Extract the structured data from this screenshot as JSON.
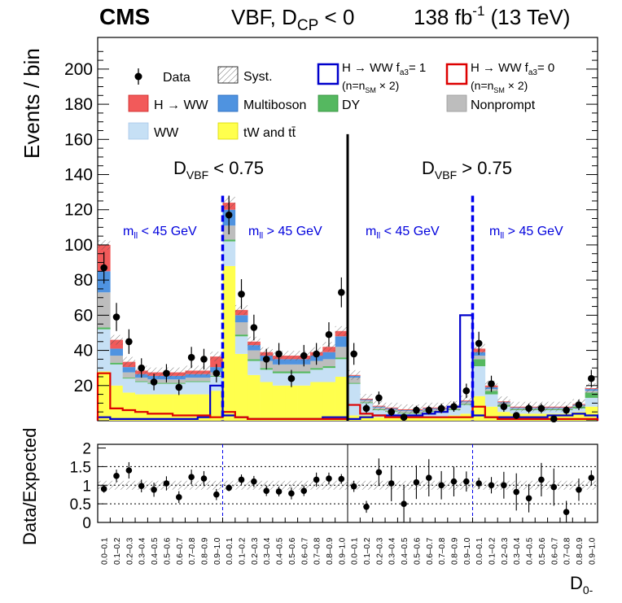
{
  "chart_data": {
    "type": "bar",
    "header": {
      "experiment": "CMS",
      "selection_main": "VBF, D",
      "selection_sub": "CP",
      "selection_tail": " < 0",
      "lumi_main": "138 fb",
      "lumi_sup": "-1",
      "lumi_tail": " (13 TeV)"
    },
    "ylabel": "Events / bin",
    "ratio_ylabel": "Data/Expected",
    "xlabel_main": "D",
    "xlabel_sub": "0-",
    "ylim": [
      0,
      218
    ],
    "ratio_ylim": [
      0,
      2.1
    ],
    "yticks": [
      "20",
      "40",
      "60",
      "80",
      "100",
      "120",
      "140",
      "160",
      "180",
      "200"
    ],
    "ratio_yticks": [
      "0",
      "0.5",
      "1",
      "1.5",
      "2"
    ],
    "categories": [
      "0.0–0.1",
      "0.1–0.2",
      "0.2–0.3",
      "0.3–0.4",
      "0.4–0.5",
      "0.5–0.6",
      "0.6–0.7",
      "0.7–0.8",
      "0.8–0.9",
      "0.9–1.0",
      "0.0–0.1",
      "0.1–0.2",
      "0.2–0.3",
      "0.3–0.4",
      "0.4–0.5",
      "0.5–0.6",
      "0.6–0.7",
      "0.7–0.8",
      "0.8–0.9",
      "0.9–1.0",
      "0.0–0.1",
      "0.1–0.2",
      "0.2–0.3",
      "0.3–0.4",
      "0.4–0.5",
      "0.5–0.6",
      "0.6–0.7",
      "0.7–0.8",
      "0.8–0.9",
      "0.9–1.0",
      "0.0–0.1",
      "0.1–0.2",
      "0.2–0.3",
      "0.3–0.4",
      "0.4–0.5",
      "0.5–0.6",
      "0.6–0.7",
      "0.7–0.8",
      "0.8–0.9",
      "0.9–1.0"
    ],
    "regions": {
      "dvbf_low": {
        "main": "D",
        "sub": "VBF",
        "tail": " < 0.75"
      },
      "dvbf_high": {
        "main": "D",
        "sub": "VBF",
        "tail": " > 0.75"
      },
      "mll": [
        {
          "main": "m",
          "sub": "ll",
          "tail": " < 45 GeV"
        },
        {
          "main": "m",
          "sub": "ll",
          "tail": " > 45 GeV"
        },
        {
          "main": "m",
          "sub": "ll",
          "tail": " < 45 GeV"
        },
        {
          "main": "m",
          "sub": "ll",
          "tail": " > 45 GeV"
        }
      ]
    },
    "legend": {
      "data": "Data",
      "syst": "Syst.",
      "hww": "H → WW",
      "multiboson": "Multiboson",
      "dy": "DY",
      "nonprompt": "Nonprompt",
      "ww": "WW",
      "top": "tW and tt̄",
      "fa3_1": "H → WW f",
      "fa3_1_sub": "a3",
      "fa3_1_tail": "= 1",
      "fa3_0": "H → WW f",
      "fa3_0_sub": "a3",
      "fa3_0_tail": "= 0",
      "scale_main": "(n=n",
      "scale_sub": "SM",
      "scale_tail": " × 2)"
    },
    "stack_order": [
      "top",
      "ww",
      "dy",
      "nonprompt",
      "multiboson",
      "hww"
    ],
    "colors": {
      "top": "#ffff4d",
      "ww": "#c6e0f5",
      "dy": "#55b860",
      "nonprompt": "#bdbdbd",
      "multiboson": "#4f93e0",
      "hww": "#f25a5a",
      "fa3_1": "#0000cc",
      "fa3_0": "#dd0000",
      "divider_blue": "#0000ee"
    },
    "series": [
      {
        "name": "tW and tt̄",
        "key": "top",
        "values": [
          28,
          20,
          16,
          15,
          15,
          15,
          15,
          15,
          15,
          17,
          88,
          38,
          26,
          22,
          20,
          20,
          20,
          22,
          22,
          25,
          3,
          3,
          2,
          2,
          2,
          2,
          2,
          2,
          3,
          4,
          14,
          8,
          5,
          4,
          4,
          4,
          4,
          4,
          5,
          8
        ]
      },
      {
        "name": "WW",
        "key": "ww",
        "values": [
          24,
          12,
          8,
          7,
          6,
          6,
          6,
          7,
          7,
          8,
          14,
          10,
          8,
          7,
          7,
          7,
          7,
          7,
          8,
          10,
          18,
          7,
          4,
          3,
          2,
          2,
          3,
          3,
          3,
          5,
          17,
          7,
          3,
          2,
          2,
          2,
          2,
          2,
          2,
          5
        ]
      },
      {
        "name": "DY",
        "key": "dy",
        "values": [
          1,
          1,
          0.5,
          0.5,
          0.5,
          0.5,
          0.5,
          0.5,
          0.5,
          0.5,
          1,
          1,
          1,
          1,
          1,
          1,
          1,
          1,
          1,
          1,
          0.5,
          0.5,
          0.5,
          0.5,
          0.5,
          0.5,
          0.5,
          0.5,
          0.5,
          0.5,
          4,
          2,
          1,
          0.5,
          0.5,
          0.5,
          0.5,
          0.5,
          1,
          3
        ]
      },
      {
        "name": "Nonprompt",
        "key": "nonprompt",
        "values": [
          20,
          4,
          3,
          2,
          2,
          2,
          2,
          2,
          2,
          2,
          8,
          7,
          5,
          4,
          4,
          4,
          4,
          4,
          4,
          6,
          3,
          1,
          1,
          1,
          1,
          1,
          1,
          1,
          1,
          1,
          2,
          1,
          1,
          0.5,
          0.5,
          0.5,
          0.5,
          0.5,
          0.5,
          1
        ]
      },
      {
        "name": "Multiboson",
        "key": "multiboson",
        "values": [
          12,
          4,
          3,
          2,
          2,
          2,
          2,
          2,
          2,
          3,
          9,
          4,
          3,
          3,
          3,
          3,
          3,
          3,
          4,
          6,
          1,
          0.5,
          0.5,
          0.5,
          0.5,
          0.5,
          0.5,
          0.5,
          0.5,
          0.5,
          2,
          1,
          0.5,
          0.5,
          0.5,
          0.5,
          0.5,
          0.5,
          0.5,
          1
        ]
      },
      {
        "name": "H → WW",
        "key": "hww",
        "values": [
          15,
          5,
          3,
          2,
          2,
          2,
          2,
          2,
          2,
          6,
          4,
          3,
          2,
          2,
          2,
          2,
          2,
          2,
          3,
          3,
          0.5,
          0.5,
          0.5,
          0.5,
          0.5,
          0.5,
          0.5,
          0.5,
          0.5,
          0.5,
          2,
          1,
          0.5,
          0.5,
          0.5,
          0.5,
          0.5,
          0.5,
          0.5,
          0.5
        ]
      }
    ],
    "data": {
      "values": [
        87,
        59,
        45,
        30,
        22,
        27,
        19,
        36,
        35,
        27,
        117,
        72,
        53,
        35,
        38,
        24,
        37,
        38,
        49,
        73,
        38,
        7,
        13,
        5,
        2,
        6,
        6,
        7,
        8,
        17,
        44,
        21,
        8,
        3,
        7,
        7,
        1,
        6,
        9,
        24
      ],
      "errors": [
        9,
        8,
        7,
        5.5,
        4.7,
        5.2,
        4.4,
        6,
        5.9,
        5.2,
        11,
        8.5,
        7.3,
        5.9,
        6.2,
        4.9,
        6.1,
        6.2,
        7,
        8.5,
        6.2,
        2.7,
        3.6,
        2.3,
        1.5,
        2.5,
        2.5,
        2.7,
        2.9,
        4.1,
        6.6,
        4.6,
        2.9,
        1.8,
        2.7,
        2.7,
        1,
        2.5,
        3,
        4.9
      ]
    },
    "fa3_1_values": [
      2,
      1,
      1,
      1,
      1,
      1,
      1,
      1,
      2,
      20,
      3,
      2,
      1,
      1,
      1,
      1,
      1,
      1,
      2,
      2,
      1,
      2,
      3,
      3,
      3,
      3,
      4,
      5,
      8,
      60,
      3,
      2,
      2,
      2,
      2,
      2,
      3,
      3,
      4,
      3
    ],
    "fa3_0_values": [
      27,
      7,
      6,
      5,
      4,
      4,
      3,
      3,
      3,
      2,
      5,
      2,
      1,
      1,
      1,
      1,
      1,
      1,
      1,
      1,
      9,
      4,
      3,
      2,
      2,
      2,
      2,
      2,
      2,
      2,
      8,
      2,
      1,
      1,
      1,
      1,
      1,
      1,
      1,
      1
    ],
    "ratio": {
      "values": [
        0.9,
        1.25,
        1.4,
        0.98,
        0.88,
        1.05,
        0.68,
        1.22,
        1.18,
        0.75,
        0.93,
        1.15,
        1.1,
        0.85,
        0.83,
        0.78,
        0.85,
        1.15,
        1.18,
        1.17,
        0.97,
        0.42,
        1.35,
        1.05,
        0.5,
        1.08,
        1.2,
        1.0,
        1.1,
        1.1,
        1.05,
        1.0,
        1.0,
        0.82,
        0.65,
        1.15,
        0.95,
        0.28,
        0.88,
        1.2
      ],
      "errors": [
        0.1,
        0.17,
        0.22,
        0.17,
        0.19,
        0.19,
        0.16,
        0.2,
        0.2,
        0.15,
        0.09,
        0.14,
        0.15,
        0.14,
        0.13,
        0.16,
        0.14,
        0.19,
        0.16,
        0.13,
        0.15,
        0.16,
        0.37,
        0.48,
        0.5,
        0.45,
        0.5,
        0.38,
        0.4,
        0.27,
        0.15,
        0.22,
        0.36,
        0.5,
        0.38,
        0.45,
        0.5,
        0.3,
        0.3,
        0.2
      ]
    }
  }
}
